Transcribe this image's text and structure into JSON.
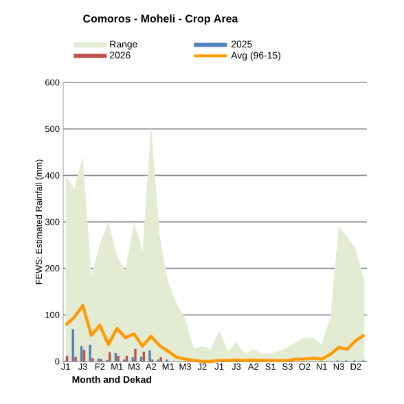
{
  "chart_data": {
    "type": "bar",
    "title": "Comoros - Moheli - Crop Area",
    "xlabel": "Month and Dekad",
    "ylabel": "FEWS: Estimated Rainfall (mm)",
    "categories": [
      "J1",
      null,
      "J3",
      null,
      "F2",
      null,
      "M1",
      null,
      "M3",
      null,
      "A2",
      null,
      "M1",
      null,
      "M3",
      null,
      "J2",
      null,
      "J1",
      null,
      "J3",
      null,
      "A2",
      null,
      "S1",
      null,
      "S3",
      null,
      "O2",
      null,
      "N1",
      null,
      "N3",
      null,
      "D2",
      null
    ],
    "series": [
      {
        "name": "Range",
        "type": "area",
        "color": "#e3ebd3",
        "values": [
          399,
          372,
          441,
          183,
          252,
          301,
          227,
          196,
          301,
          237,
          507,
          271,
          169,
          125,
          90,
          28,
          33,
          26,
          66,
          22,
          41,
          17,
          26,
          17,
          17,
          22,
          31,
          41,
          51,
          51,
          36,
          95,
          291,
          267,
          242,
          173
        ]
      },
      {
        "name": "2025",
        "color": "#4f81bd",
        "values": [
          0,
          69,
          33,
          36,
          6,
          3,
          18,
          4,
          9,
          10,
          24,
          4,
          4,
          null,
          0,
          0,
          0,
          0,
          0,
          0,
          0,
          0,
          0,
          0,
          0,
          0,
          0,
          0,
          0,
          0,
          0,
          0,
          2,
          2,
          2,
          2
        ]
      },
      {
        "name": "2026",
        "color": "#c0504d",
        "values": [
          12,
          10,
          25,
          7,
          5,
          20,
          12,
          12,
          27,
          21,
          4,
          9,
          null,
          null,
          null,
          null,
          null,
          null,
          null,
          null,
          null,
          null,
          null,
          null,
          null,
          null,
          null,
          null,
          null,
          null,
          null,
          null,
          null,
          null,
          null,
          null
        ]
      },
      {
        "name": "Avg (96-15)",
        "type": "line",
        "color": "#ff9900",
        "values": [
          78,
          95,
          120,
          56,
          78,
          36,
          71,
          51,
          59,
          33,
          54,
          34,
          22,
          9,
          5,
          2,
          0,
          0,
          2,
          2,
          3,
          2,
          3,
          2,
          2,
          2,
          2,
          5,
          5,
          7,
          5,
          15,
          30,
          26,
          45,
          57
        ]
      }
    ],
    "ylim": [
      0,
      600
    ],
    "yticks": [
      0,
      100,
      200,
      300,
      400,
      500,
      600
    ],
    "grid": "y",
    "legend": "top"
  }
}
